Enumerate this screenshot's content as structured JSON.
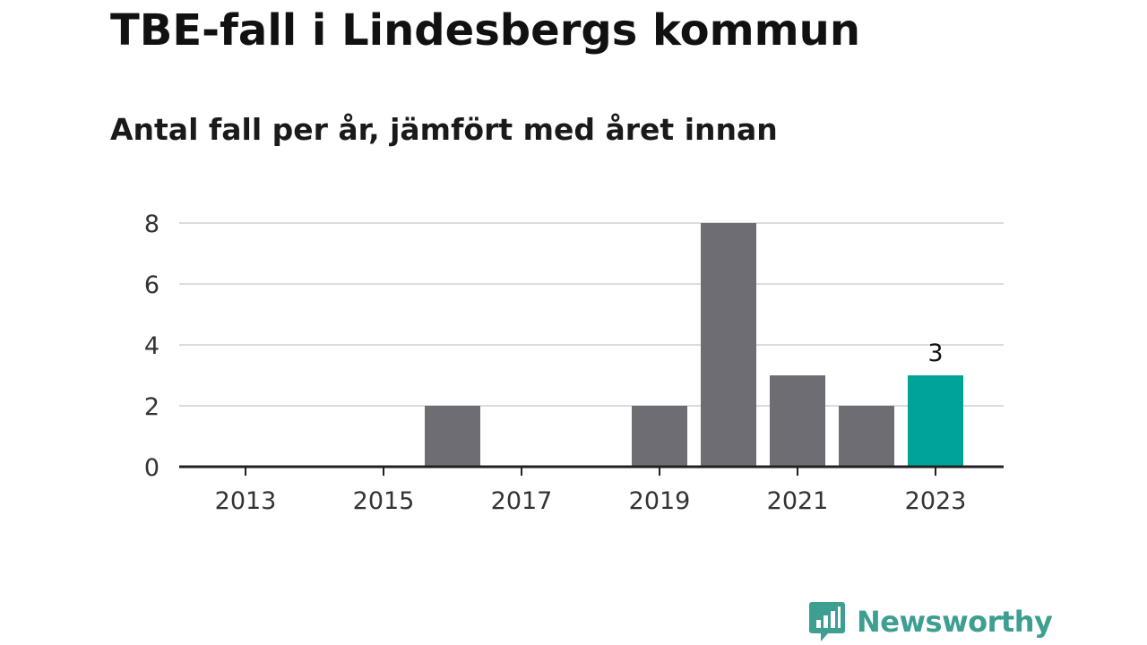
{
  "chart_data": {
    "type": "bar",
    "title": "TBE-fall i Lindesbergs kommun",
    "subtitle": "Antal fall per år, jämfört med året innan",
    "xlabel": "",
    "ylabel": "",
    "categories": [
      "2013",
      "2014",
      "2015",
      "2016",
      "2017",
      "2018",
      "2019",
      "2020",
      "2021",
      "2022",
      "2023"
    ],
    "values": [
      0,
      0,
      0,
      2,
      0,
      0,
      2,
      8,
      3,
      2,
      3
    ],
    "x_tick_labels": [
      "2013",
      "2015",
      "2017",
      "2019",
      "2021",
      "2023"
    ],
    "y_ticks": [
      0,
      2,
      4,
      6,
      8
    ],
    "ylim": [
      0,
      8
    ],
    "grid": true,
    "highlight": {
      "category": "2023",
      "label": "3"
    },
    "colors": {
      "bar": "#6e6d73",
      "highlight": "#00a398",
      "grid": "#dcdcdc",
      "axis": "#222222"
    }
  },
  "branding": {
    "logo_text": "Newsworthy",
    "logo_icon": "newsworthy-chart-icon",
    "color": "#3d9e92"
  }
}
